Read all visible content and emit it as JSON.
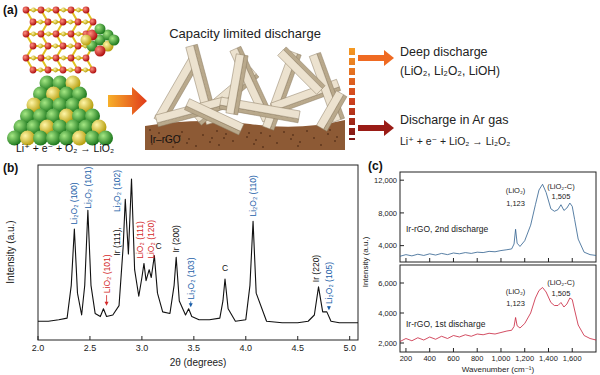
{
  "figure": {
    "panel_labels": [
      "(a)",
      "(b)",
      "(c)"
    ]
  },
  "diagram": {
    "title": "Capacity limited discharge",
    "substrate": "Ir–rGO",
    "reaction": "Li⁺ + e⁻ + O₂ → LiO₂",
    "outcomes": [
      {
        "title": "Deep discharge",
        "detail": "(LiO₂, Li₂O₂, LiOH)"
      },
      {
        "title": "Discharge in Ar gas",
        "detail": "Li⁺ + e⁻ + LiO₂ → Li₂O₂"
      }
    ]
  },
  "chart_data": [
    {
      "type": "line",
      "x_label": "2θ (degrees)",
      "y_label": "Intensity (a.u.)",
      "x": [
        2.0,
        2.1,
        2.2,
        2.28,
        2.32,
        2.35,
        2.38,
        2.42,
        2.45,
        2.48,
        2.51,
        2.55,
        2.6,
        2.63,
        2.66,
        2.72,
        2.78,
        2.82,
        2.84,
        2.87,
        2.9,
        2.93,
        2.97,
        3.0,
        3.02,
        3.04,
        3.07,
        3.09,
        3.12,
        3.15,
        3.2,
        3.27,
        3.31,
        3.33,
        3.36,
        3.42,
        3.45,
        3.48,
        3.55,
        3.65,
        3.75,
        3.78,
        3.8,
        3.83,
        3.9,
        4.0,
        4.04,
        4.07,
        4.1,
        4.2,
        4.35,
        4.5,
        4.6,
        4.66,
        4.7,
        4.74,
        4.78,
        4.82,
        4.9,
        5.0,
        5.1
      ],
      "values": [
        12,
        12,
        13,
        14,
        35,
        71,
        30,
        16,
        35,
        83,
        35,
        17,
        15,
        20,
        15,
        16,
        22,
        60,
        90,
        55,
        103,
        45,
        28,
        40,
        49,
        38,
        45,
        40,
        54,
        30,
        18,
        17,
        35,
        53,
        25,
        16,
        20,
        15,
        13,
        13,
        14,
        25,
        39,
        20,
        12,
        13,
        35,
        76,
        30,
        12,
        11,
        11,
        12,
        16,
        34,
        18,
        18,
        12,
        11,
        11,
        11
      ],
      "color": "#111111",
      "xlim": [
        2,
        5.08
      ],
      "ylim": [
        0,
        112
      ],
      "xticks": [
        {
          "value": 2,
          "label": "2.0"
        },
        2.5,
        {
          "value": 3,
          "label": "3.0"
        },
        3.5,
        {
          "value": 4,
          "label": "4.0"
        },
        4.5,
        {
          "value": 5,
          "label": "5.0"
        }
      ],
      "tick_labels": "x",
      "annotations": [
        {
          "text": "Li₂O₂ (100)",
          "x": 2.35,
          "y": 74,
          "color": "#1a5ea8"
        },
        {
          "text": "Li₂O₂ (101)",
          "x": 2.48,
          "y": 84,
          "color": "#1a5ea8"
        },
        {
          "text": "LiO₂ (101)",
          "x": 2.66,
          "y": 30,
          "color": "#d42a2a",
          "arrow_y": 22
        },
        {
          "text": "Ir (111),",
          "x": 2.76,
          "y": 54,
          "color": "#111111"
        },
        {
          "text": "Li₂O₂ (102)",
          "x": 2.76,
          "y": 82,
          "color": "#1a5ea8"
        },
        {
          "text": "LiO₂ (111)",
          "x": 2.985,
          "y": 52,
          "color": "#d42a2a"
        },
        {
          "text": "LiO₂ (120)",
          "x": 3.085,
          "y": 52,
          "color": "#d42a2a"
        },
        {
          "text": "C",
          "x": 3.16,
          "y": 58,
          "color": "#111111"
        },
        {
          "text": "Ir (200)",
          "x": 3.33,
          "y": 56,
          "color": "#111111"
        },
        {
          "text": "Li₂O₂ (103)",
          "x": 3.47,
          "y": 26,
          "color": "#1a5ea8",
          "arrow_y": 21
        },
        {
          "text": "C",
          "x": 3.8,
          "y": 44,
          "color": "#111111"
        },
        {
          "text": "Li₂O₂ (110)",
          "x": 4.07,
          "y": 79,
          "color": "#1a5ea8"
        },
        {
          "text": "Ir (220)",
          "x": 4.68,
          "y": 37,
          "color": "#111111"
        },
        {
          "text": "Li₂O₂ (105)",
          "x": 4.8,
          "y": 23,
          "color": "#1a5ea8",
          "arrow_y": 19
        }
      ]
    },
    {
      "type": "line",
      "x": [
        150,
        200,
        250,
        300,
        350,
        400,
        450,
        500,
        550,
        600,
        650,
        700,
        750,
        800,
        850,
        900,
        950,
        1000,
        1050,
        1090,
        1110,
        1123,
        1136,
        1160,
        1200,
        1250,
        1290,
        1320,
        1350,
        1380,
        1420,
        1450,
        1480,
        1505,
        1530,
        1555,
        1580,
        1600,
        1620,
        1650,
        1700,
        1750,
        1800
      ],
      "series": [
        {
          "name": "Ir-rGO, 2nd discharge",
          "color": "#2e5f8e",
          "values": [
            2700,
            2900,
            2750,
            2950,
            2800,
            3000,
            2850,
            3050,
            2900,
            3100,
            3000,
            3150,
            3050,
            3200,
            3150,
            3300,
            3250,
            3400,
            3500,
            3600,
            4200,
            6000,
            4300,
            3900,
            4600,
            6500,
            9000,
            10800,
            11500,
            10500,
            8500,
            8200,
            8400,
            9000,
            8300,
            8600,
            9200,
            8800,
            7200,
            4800,
            3200,
            2900,
            2800
          ]
        }
      ],
      "xlim": [
        150,
        1800
      ],
      "ylim": [
        2000,
        13000
      ],
      "xticks": [
        200,
        400,
        600,
        800,
        1000,
        1200,
        1400,
        1600
      ],
      "yticks": [
        {
          "value": 4000,
          "label": "4,000"
        },
        {
          "value": 8000,
          "label": "8,000"
        },
        {
          "value": 12000,
          "label": "12,000"
        }
      ],
      "tick_labels": "y",
      "annotations": [
        {
          "text": "(LiO₂)",
          "x": 1123,
          "y": 10400,
          "color": "#222222"
        },
        {
          "text": "1,123",
          "x": 1123,
          "y": 8900,
          "color": "#222222"
        },
        {
          "text": "(LiO₂-C)",
          "x": 1505,
          "y": 10900,
          "color": "#222222"
        },
        {
          "text": "1,505",
          "x": 1505,
          "y": 9700,
          "color": "#222222"
        }
      ]
    },
    {
      "type": "line",
      "x_label": "Wavenumber (cm⁻¹)",
      "y_label": "Intensity (a.u.)",
      "x": [
        150,
        200,
        250,
        300,
        350,
        400,
        450,
        500,
        550,
        600,
        650,
        700,
        750,
        800,
        850,
        900,
        950,
        1000,
        1050,
        1090,
        1110,
        1123,
        1136,
        1160,
        1200,
        1250,
        1290,
        1320,
        1350,
        1380,
        1420,
        1450,
        1480,
        1505,
        1530,
        1555,
        1580,
        1600,
        1620,
        1650,
        1700,
        1750,
        1800
      ],
      "series": [
        {
          "name": "Ir-rGO, 1st discharge",
          "color": "#c8213b",
          "values": [
            2100,
            2300,
            2150,
            2350,
            2200,
            2400,
            2250,
            2450,
            2300,
            2500,
            2400,
            2550,
            2450,
            2600,
            2550,
            2650,
            2600,
            2700,
            2800,
            2850,
            3100,
            3700,
            3150,
            3000,
            3300,
            4000,
            5000,
            5500,
            5700,
            5400,
            4700,
            4500,
            4500,
            4700,
            4400,
            4600,
            5000,
            4900,
            4200,
            3200,
            2500,
            2300,
            2200
          ]
        }
      ],
      "xlim": [
        150,
        1800
      ],
      "ylim": [
        1400,
        7200
      ],
      "xticks": [
        200,
        400,
        600,
        800,
        {
          "value": 1000,
          "label": "1,000"
        },
        {
          "value": 1200,
          "label": "1,200"
        },
        {
          "value": 1400,
          "label": "1,400"
        },
        {
          "value": 1600,
          "label": "1,600"
        }
      ],
      "yticks": [
        {
          "value": 2000,
          "label": "2,000"
        },
        {
          "value": 4000,
          "label": "4,000"
        },
        {
          "value": 6000,
          "label": "6,000"
        }
      ],
      "annotations": [
        {
          "text": "(LiO₂)",
          "x": 1123,
          "y": 5300,
          "color": "#222222"
        },
        {
          "text": "1,123",
          "x": 1123,
          "y": 4500,
          "color": "#222222"
        },
        {
          "text": "(LiO₂-C)",
          "x": 1505,
          "y": 5900,
          "color": "#222222"
        },
        {
          "text": "1,505",
          "x": 1505,
          "y": 5150,
          "color": "#222222"
        }
      ]
    }
  ]
}
